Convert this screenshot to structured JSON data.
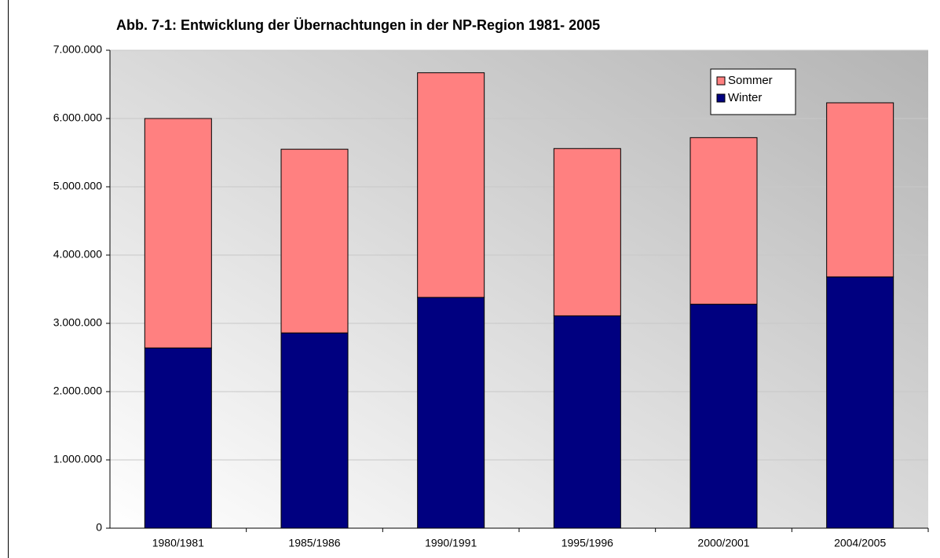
{
  "chart_data": {
    "type": "stacked_bar",
    "title": "Abb. 7-1: Entwicklung der Übernachtungen in der NP-Region 1981- 2005",
    "categories": [
      "1980/1981",
      "1985/1986",
      "1990/1991",
      "1995/1996",
      "2000/2001",
      "2004/2005"
    ],
    "series": [
      {
        "name": "Winter",
        "color": "#000080",
        "values": [
          2640000,
          2860000,
          3380000,
          3110000,
          3280000,
          3680000
        ]
      },
      {
        "name": "Sommer",
        "color": "#ff8080",
        "values": [
          3360000,
          2690000,
          3290000,
          2450000,
          2440000,
          2550000
        ]
      }
    ],
    "ylim": [
      0,
      7000000
    ],
    "yticks": [
      0,
      {
        "value": 1000000,
        "label": "1.000.000"
      },
      {
        "value": 2000000,
        "label": "2.000.000"
      },
      {
        "value": 3000000,
        "label": "3.000.000"
      },
      {
        "value": 4000000,
        "label": "4.000.000"
      },
      {
        "value": 5000000,
        "label": "5.000.000"
      },
      {
        "value": 6000000,
        "label": "6.000.000"
      },
      {
        "value": 7000000,
        "label": "7.000.000"
      }
    ],
    "grid": true,
    "legend": "top-right"
  }
}
